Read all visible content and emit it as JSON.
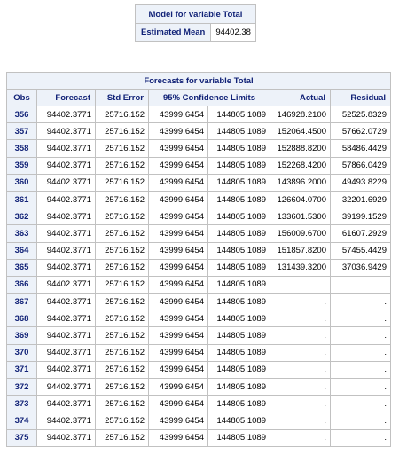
{
  "model": {
    "caption": "Model for variable Total",
    "row_label": "Estimated Mean",
    "row_value": "94402.38"
  },
  "forecasts": {
    "caption": "Forecasts for variable Total",
    "headers": {
      "obs": "Obs",
      "forecast": "Forecast",
      "std_error": "Std Error",
      "confidence": "95% Confidence Limits",
      "actual": "Actual",
      "residual": "Residual"
    },
    "rows": [
      {
        "obs": "356",
        "forecast": "94402.3771",
        "std_error": "25716.152",
        "lower": "43999.6454",
        "upper": "144805.1089",
        "actual": "146928.2100",
        "residual": "52525.8329"
      },
      {
        "obs": "357",
        "forecast": "94402.3771",
        "std_error": "25716.152",
        "lower": "43999.6454",
        "upper": "144805.1089",
        "actual": "152064.4500",
        "residual": "57662.0729"
      },
      {
        "obs": "358",
        "forecast": "94402.3771",
        "std_error": "25716.152",
        "lower": "43999.6454",
        "upper": "144805.1089",
        "actual": "152888.8200",
        "residual": "58486.4429"
      },
      {
        "obs": "359",
        "forecast": "94402.3771",
        "std_error": "25716.152",
        "lower": "43999.6454",
        "upper": "144805.1089",
        "actual": "152268.4200",
        "residual": "57866.0429"
      },
      {
        "obs": "360",
        "forecast": "94402.3771",
        "std_error": "25716.152",
        "lower": "43999.6454",
        "upper": "144805.1089",
        "actual": "143896.2000",
        "residual": "49493.8229"
      },
      {
        "obs": "361",
        "forecast": "94402.3771",
        "std_error": "25716.152",
        "lower": "43999.6454",
        "upper": "144805.1089",
        "actual": "126604.0700",
        "residual": "32201.6929"
      },
      {
        "obs": "362",
        "forecast": "94402.3771",
        "std_error": "25716.152",
        "lower": "43999.6454",
        "upper": "144805.1089",
        "actual": "133601.5300",
        "residual": "39199.1529"
      },
      {
        "obs": "363",
        "forecast": "94402.3771",
        "std_error": "25716.152",
        "lower": "43999.6454",
        "upper": "144805.1089",
        "actual": "156009.6700",
        "residual": "61607.2929"
      },
      {
        "obs": "364",
        "forecast": "94402.3771",
        "std_error": "25716.152",
        "lower": "43999.6454",
        "upper": "144805.1089",
        "actual": "151857.8200",
        "residual": "57455.4429"
      },
      {
        "obs": "365",
        "forecast": "94402.3771",
        "std_error": "25716.152",
        "lower": "43999.6454",
        "upper": "144805.1089",
        "actual": "131439.3200",
        "residual": "37036.9429"
      },
      {
        "obs": "366",
        "forecast": "94402.3771",
        "std_error": "25716.152",
        "lower": "43999.6454",
        "upper": "144805.1089",
        "actual": ".",
        "residual": "."
      },
      {
        "obs": "367",
        "forecast": "94402.3771",
        "std_error": "25716.152",
        "lower": "43999.6454",
        "upper": "144805.1089",
        "actual": ".",
        "residual": "."
      },
      {
        "obs": "368",
        "forecast": "94402.3771",
        "std_error": "25716.152",
        "lower": "43999.6454",
        "upper": "144805.1089",
        "actual": ".",
        "residual": "."
      },
      {
        "obs": "369",
        "forecast": "94402.3771",
        "std_error": "25716.152",
        "lower": "43999.6454",
        "upper": "144805.1089",
        "actual": ".",
        "residual": "."
      },
      {
        "obs": "370",
        "forecast": "94402.3771",
        "std_error": "25716.152",
        "lower": "43999.6454",
        "upper": "144805.1089",
        "actual": ".",
        "residual": "."
      },
      {
        "obs": "371",
        "forecast": "94402.3771",
        "std_error": "25716.152",
        "lower": "43999.6454",
        "upper": "144805.1089",
        "actual": ".",
        "residual": "."
      },
      {
        "obs": "372",
        "forecast": "94402.3771",
        "std_error": "25716.152",
        "lower": "43999.6454",
        "upper": "144805.1089",
        "actual": ".",
        "residual": "."
      },
      {
        "obs": "373",
        "forecast": "94402.3771",
        "std_error": "25716.152",
        "lower": "43999.6454",
        "upper": "144805.1089",
        "actual": ".",
        "residual": "."
      },
      {
        "obs": "374",
        "forecast": "94402.3771",
        "std_error": "25716.152",
        "lower": "43999.6454",
        "upper": "144805.1089",
        "actual": ".",
        "residual": "."
      },
      {
        "obs": "375",
        "forecast": "94402.3771",
        "std_error": "25716.152",
        "lower": "43999.6454",
        "upper": "144805.1089",
        "actual": ".",
        "residual": "."
      }
    ]
  }
}
